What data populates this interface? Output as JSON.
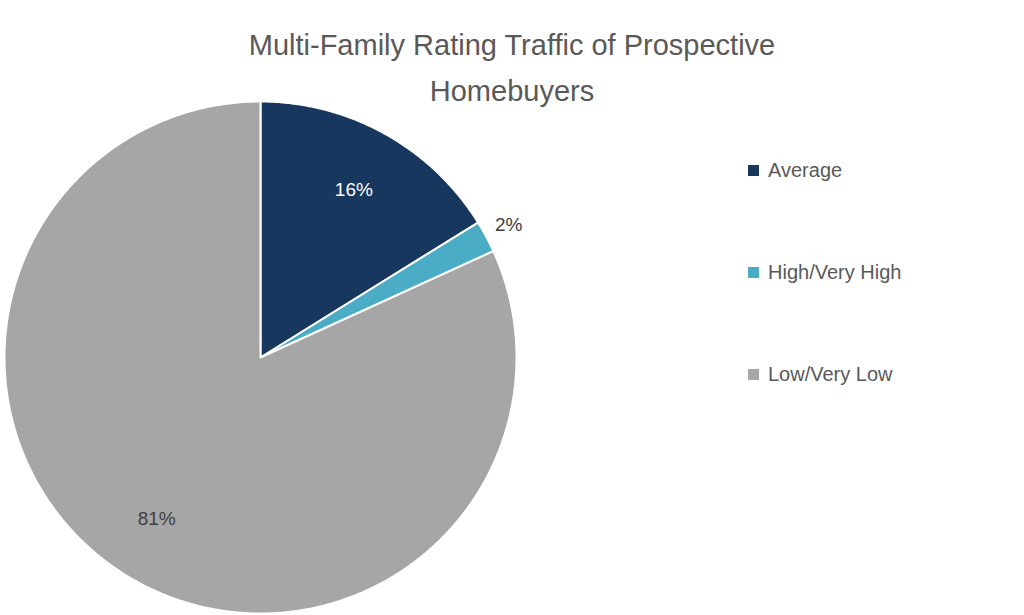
{
  "chart_data": {
    "type": "pie",
    "title": "Multi-Family Rating Traffic of Prospective Homebuyers",
    "categories": [
      "Average",
      "High/Very High",
      "Low/Very Low"
    ],
    "values": [
      16,
      2,
      81
    ],
    "value_labels": [
      "16%",
      "2%",
      "81%"
    ],
    "colors": [
      "#17375e",
      "#4bacc6",
      "#a6a6a6"
    ],
    "data_labels": true,
    "legend": "right"
  }
}
